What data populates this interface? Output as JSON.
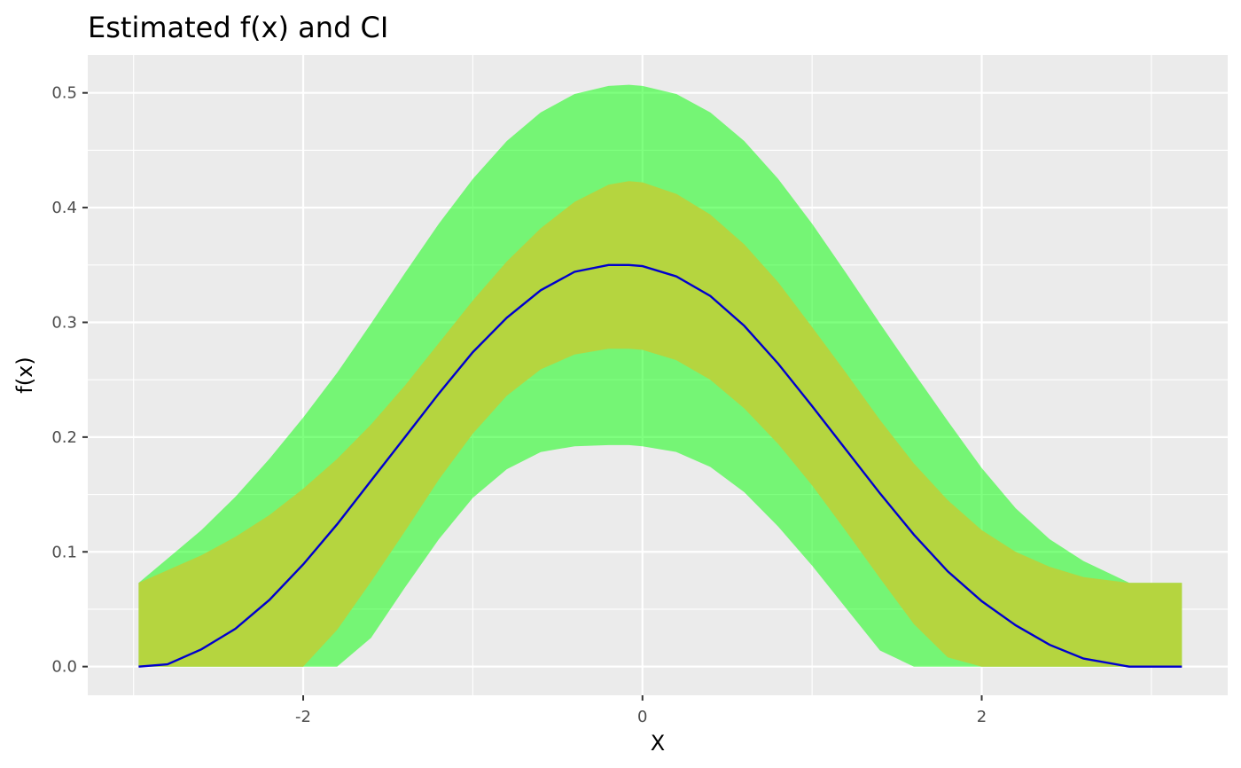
{
  "chart_data": {
    "type": "area",
    "title": "Estimated f(x) and CI",
    "xlabel": "X",
    "ylabel": "f(x)",
    "xlim": [
      -3.27,
      3.45
    ],
    "ylim": [
      -0.025,
      0.533
    ],
    "x_ticks": [
      -2,
      0,
      2
    ],
    "x_tick_labels": [
      "-2",
      "0",
      "2"
    ],
    "x_minor_ticks": [
      -3,
      -1,
      1,
      3
    ],
    "y_ticks": [
      0.0,
      0.1,
      0.2,
      0.3,
      0.4,
      0.5
    ],
    "y_tick_labels": [
      "0.0",
      "0.1",
      "0.2",
      "0.3",
      "0.4",
      "0.5"
    ],
    "y_minor_ticks": [
      0.05,
      0.15,
      0.25,
      0.35,
      0.45
    ],
    "grid": true,
    "legend": "none",
    "colors": {
      "outer_band": "#00ff00",
      "outer_band_opacity": 0.5,
      "inner_band": "#b8d33c",
      "inner_band_opacity": 0.95,
      "estimate_line": "#0000cd",
      "panel_background": "#ebebeb"
    },
    "x": [
      -2.97,
      -2.8,
      -2.6,
      -2.4,
      -2.2,
      -2.0,
      -1.8,
      -1.6,
      -1.4,
      -1.2,
      -1.0,
      -0.8,
      -0.6,
      -0.4,
      -0.2,
      -0.08,
      0.0,
      0.2,
      0.4,
      0.6,
      0.8,
      1.0,
      1.2,
      1.4,
      1.6,
      1.8,
      2.0,
      2.2,
      2.4,
      2.6,
      2.87,
      3.18
    ],
    "series": [
      {
        "role": "outer_upper",
        "values": [
          0.073,
          0.094,
          0.119,
          0.148,
          0.181,
          0.217,
          0.256,
          0.299,
          0.343,
          0.386,
          0.425,
          0.458,
          0.483,
          0.499,
          0.506,
          0.507,
          0.506,
          0.499,
          0.483,
          0.458,
          0.425,
          0.386,
          0.343,
          0.299,
          0.256,
          0.214,
          0.173,
          0.138,
          0.111,
          0.092,
          0.073,
          0.073
        ]
      },
      {
        "role": "inner_upper",
        "values": [
          0.073,
          0.084,
          0.097,
          0.113,
          0.132,
          0.155,
          0.181,
          0.211,
          0.245,
          0.282,
          0.319,
          0.353,
          0.382,
          0.405,
          0.42,
          0.423,
          0.422,
          0.412,
          0.394,
          0.368,
          0.335,
          0.296,
          0.256,
          0.215,
          0.177,
          0.145,
          0.119,
          0.1,
          0.087,
          0.078,
          0.073,
          0.073
        ]
      },
      {
        "role": "estimate",
        "values": [
          0.0,
          0.002,
          0.015,
          0.033,
          0.058,
          0.089,
          0.124,
          0.162,
          0.2,
          0.238,
          0.274,
          0.304,
          0.328,
          0.344,
          0.35,
          0.35,
          0.349,
          0.34,
          0.323,
          0.297,
          0.264,
          0.227,
          0.189,
          0.151,
          0.115,
          0.083,
          0.057,
          0.036,
          0.019,
          0.007,
          0.0,
          0.0
        ]
      },
      {
        "role": "inner_lower",
        "values": [
          0.0,
          0.0,
          0.0,
          0.0,
          0.0,
          0.0,
          0.032,
          0.074,
          0.118,
          0.163,
          0.203,
          0.236,
          0.259,
          0.272,
          0.277,
          0.277,
          0.276,
          0.267,
          0.25,
          0.225,
          0.194,
          0.158,
          0.118,
          0.077,
          0.037,
          0.008,
          0.0,
          0.0,
          0.0,
          0.0,
          0.0,
          0.0
        ]
      },
      {
        "role": "outer_lower",
        "values": [
          0.0,
          0.0,
          0.0,
          0.0,
          0.0,
          0.0,
          0.0,
          0.025,
          0.069,
          0.111,
          0.147,
          0.172,
          0.187,
          0.192,
          0.193,
          0.193,
          0.192,
          0.187,
          0.174,
          0.152,
          0.122,
          0.088,
          0.051,
          0.014,
          0.0,
          0.0,
          0.0,
          0.0,
          0.0,
          0.0,
          0.0,
          0.0
        ]
      }
    ]
  }
}
